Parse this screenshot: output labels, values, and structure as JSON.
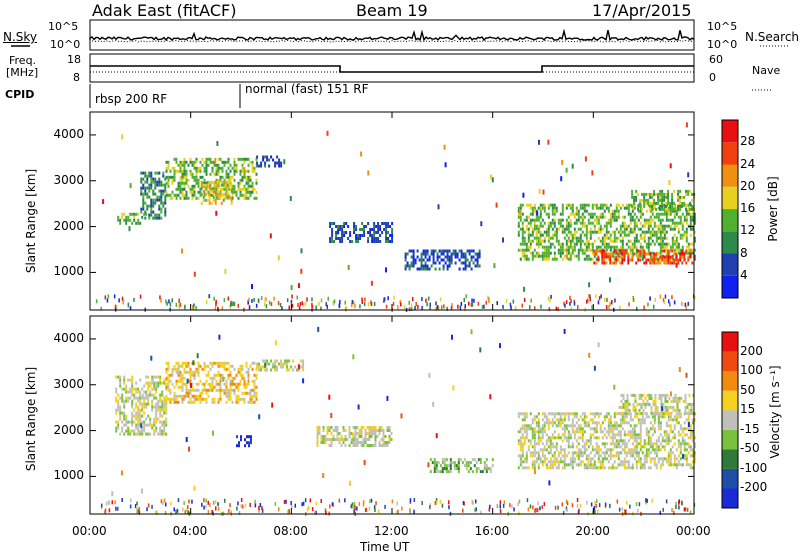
{
  "header": {
    "title": "Adak East (fitACF)",
    "beam": "Beam 19",
    "date": "17/Apr/2015"
  },
  "panels": {
    "nsky_label": "N.Sky",
    "nsearch_label": "N.Search",
    "nsky_ticks": [
      "10^5",
      "10^0"
    ],
    "freq_label_line1": "Freq.",
    "freq_label_line2": "[MHz]",
    "freq_ticks": [
      "18",
      "8"
    ],
    "nave_label": "Nave",
    "nave_ticks": [
      "60",
      "0"
    ],
    "cpid_label": "CPID",
    "cpid_segments": [
      "rbsp 200 RF",
      "normal (fast) 151 RF"
    ]
  },
  "colorbars": {
    "power": {
      "label": "Power [dB]",
      "ticks": [
        "28",
        "24",
        "20",
        "16",
        "12",
        "8",
        "4"
      ],
      "colors": [
        "#1020f0",
        "#2040b0",
        "#2e8a4a",
        "#50b030",
        "#e8d020",
        "#f09010",
        "#f04010",
        "#e81010"
      ]
    },
    "velocity": {
      "label": "Velocity [m s⁻¹]",
      "ticks": [
        "200",
        "100",
        "50",
        "15",
        "-15",
        "-50",
        "-100",
        "-200"
      ],
      "colors": [
        "#1a2bd6",
        "#1d4fa8",
        "#2f7a3a",
        "#7ac23c",
        "#c0c0b8",
        "#f4d020",
        "#f08a10",
        "#f04a10",
        "#e81010"
      ]
    }
  },
  "chart_data": [
    {
      "type": "heatmap",
      "name": "Power",
      "ylabel": "Slant Range [km]",
      "xlabel": "Time UT",
      "x_ticks": [
        "00:00",
        "04:00",
        "08:00",
        "12:00",
        "16:00",
        "20:00",
        "00:00"
      ],
      "y_ticks": [
        "4000",
        "3000",
        "2000",
        "1000"
      ],
      "ylim": [
        180,
        4500
      ],
      "xlim_hours": [
        0,
        24
      ],
      "echo_bands": [
        {
          "t0": 1.0,
          "t1": 2.2,
          "r0": 2100,
          "r1": 2300,
          "level": 3
        },
        {
          "t0": 2.0,
          "t1": 3.0,
          "r0": 2200,
          "r1": 3200,
          "level": 2
        },
        {
          "t0": 3.0,
          "t1": 6.6,
          "r0": 2600,
          "r1": 3500,
          "level": 3
        },
        {
          "t0": 4.4,
          "t1": 5.6,
          "r0": 2500,
          "r1": 3000,
          "level": 4
        },
        {
          "t0": 6.6,
          "t1": 7.6,
          "r0": 3300,
          "r1": 3550,
          "level": 1
        },
        {
          "t0": 9.5,
          "t1": 12.0,
          "r0": 1700,
          "r1": 2100,
          "level": 1
        },
        {
          "t0": 12.5,
          "t1": 15.5,
          "r0": 1100,
          "r1": 1500,
          "level": 1
        },
        {
          "t0": 17.0,
          "t1": 24.0,
          "r0": 1300,
          "r1": 2500,
          "level": 3
        },
        {
          "t0": 20.0,
          "t1": 24.0,
          "r0": 1200,
          "r1": 1500,
          "level": 6
        },
        {
          "t0": 21.5,
          "t1": 24.0,
          "r0": 2400,
          "r1": 2800,
          "level": 3
        }
      ]
    },
    {
      "type": "heatmap",
      "name": "Velocity",
      "ylabel": "Slant Range [km]",
      "xlabel": "Time UT",
      "x_ticks": [
        "00:00",
        "04:00",
        "08:00",
        "12:00",
        "16:00",
        "20:00",
        "00:00"
      ],
      "y_ticks": [
        "4000",
        "3000",
        "2000",
        "1000"
      ],
      "ylim": [
        180,
        4500
      ],
      "xlim_hours": [
        0,
        24
      ],
      "echo_bands": [
        {
          "t0": 1.0,
          "t1": 3.0,
          "r0": 1900,
          "r1": 3200,
          "level": 4
        },
        {
          "t0": 3.0,
          "t1": 6.6,
          "r0": 2600,
          "r1": 3500,
          "level": 5
        },
        {
          "t0": 5.8,
          "t1": 6.4,
          "r0": 1700,
          "r1": 1900,
          "level": 0
        },
        {
          "t0": 6.6,
          "t1": 8.5,
          "r0": 3300,
          "r1": 3550,
          "level": 4
        },
        {
          "t0": 9.0,
          "t1": 12.0,
          "r0": 1700,
          "r1": 2100,
          "level": 4
        },
        {
          "t0": 13.5,
          "t1": 16.0,
          "r0": 1100,
          "r1": 1400,
          "level": 3
        },
        {
          "t0": 17.0,
          "t1": 24.0,
          "r0": 1200,
          "r1": 2400,
          "level": 4
        },
        {
          "t0": 21.0,
          "t1": 24.0,
          "r0": 2400,
          "r1": 2800,
          "level": 4
        }
      ]
    }
  ]
}
